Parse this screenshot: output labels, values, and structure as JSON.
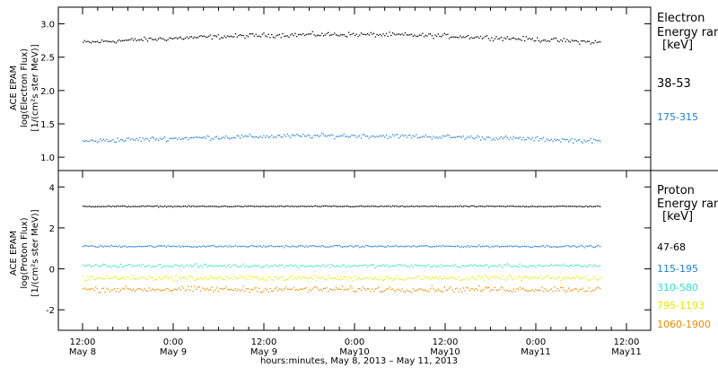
{
  "chart_data": [
    {
      "type": "scatter",
      "ylabel_lines": [
        "ACE EPAM",
        "log(Electron Flux)",
        "[1/(cm²s ster MeV)]"
      ],
      "ylim": [
        0.8,
        3.25
      ],
      "yticks": [
        "1.0",
        "1.5",
        "2.0",
        "2.5",
        "3.0"
      ],
      "ytick_values": [
        1.0,
        1.5,
        2.0,
        2.5,
        3.0
      ],
      "legend_header": [
        "Electron",
        "Energy ranges",
        "[keV]"
      ],
      "series": [
        {
          "name": "38-53",
          "color": "#000000",
          "base": 2.72,
          "trend": 0.12,
          "noise": 0.05
        },
        {
          "name": "175-315",
          "color": "#1f7fd1",
          "base": 1.24,
          "trend": 0.08,
          "noise": 0.05
        }
      ]
    },
    {
      "type": "scatter",
      "ylabel_lines": [
        "ACE EPAM",
        "log(Proton Flux)",
        "[1/(cm²s ster MeV)]"
      ],
      "ylim": [
        -3.0,
        4.8
      ],
      "yticks": [
        "-2",
        "0",
        "2",
        "4"
      ],
      "ytick_values": [
        -2,
        0,
        2,
        4
      ],
      "legend_header": [
        "Proton",
        "Energy ranges",
        "[keV]"
      ],
      "series": [
        {
          "name": "47-68",
          "color": "#000000",
          "base": 3.05,
          "trend": 0.0,
          "noise": 0.04
        },
        {
          "name": "115-195",
          "color": "#1f7fd1",
          "base": 1.1,
          "trend": 0.0,
          "noise": 0.07
        },
        {
          "name": "310-580",
          "color": "#33e0cc",
          "base": 0.15,
          "trend": 0.0,
          "noise": 0.12
        },
        {
          "name": "795-1193",
          "color": "#e8e800",
          "base": -0.45,
          "trend": 0.0,
          "noise": 0.18
        },
        {
          "name": "1060-1900",
          "color": "#ee8a00",
          "base": -1.0,
          "trend": 0.0,
          "noise": 0.2
        }
      ]
    }
  ],
  "x_axis": {
    "ticks": [
      {
        "time": "12:00",
        "date": "May 8"
      },
      {
        "time": "0:00",
        "date": "May 9"
      },
      {
        "time": "12:00",
        "date": "May 9"
      },
      {
        "time": "0:00",
        "date": "May10"
      },
      {
        "time": "12:00",
        "date": "May10"
      },
      {
        "time": "0:00",
        "date": "May11"
      },
      {
        "time": "12:00",
        "date": "May11"
      }
    ],
    "xlabel": "hours:minutes,  May  8, 2013 – May 11, 2013"
  }
}
